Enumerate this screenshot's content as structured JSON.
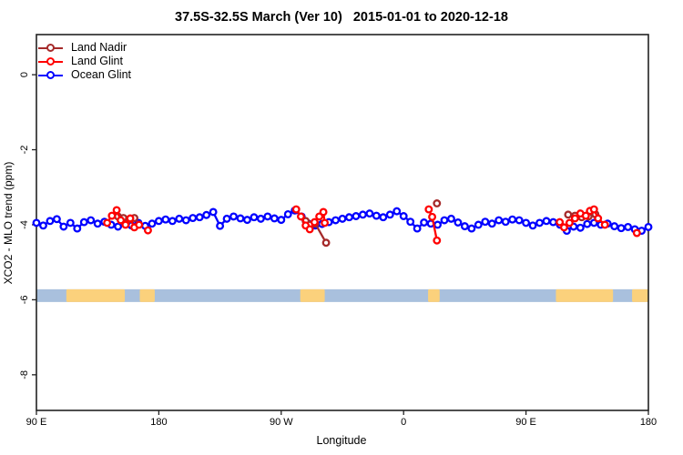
{
  "chart_data": {
    "type": "line",
    "title": "37.5S-32.5S March (Ver 10)   2015-01-01 to 2020-12-18",
    "xlabel": "Longitude",
    "ylabel": "XCO2 - MLO trend (ppm)",
    "x_axis_note": "longitude shown wrapping 450 degrees: 90E -> 180 -> 90W -> 0 -> 90E -> 180",
    "xlim_deg": [
      90,
      540
    ],
    "ylim": [
      -8.95,
      1.07
    ],
    "grid": false,
    "legend_position": "top-left",
    "axis_color": "#222222",
    "x_ticks": [
      {
        "deg": 90,
        "label": "90 E"
      },
      {
        "deg": 180,
        "label": "180"
      },
      {
        "deg": 270,
        "label": "90 W"
      },
      {
        "deg": 360,
        "label": "0"
      },
      {
        "deg": 450,
        "label": "90 E"
      },
      {
        "deg": 540,
        "label": "180"
      }
    ],
    "y_ticks": [
      {
        "v": 0,
        "label": "0"
      },
      {
        "v": -2,
        "label": "-2"
      },
      {
        "v": -4,
        "label": "-4"
      },
      {
        "v": -6,
        "label": "-6"
      },
      {
        "v": -8,
        "label": "-8"
      }
    ],
    "legend": [
      {
        "id": "land-nadir",
        "label": "Land Nadir",
        "color": "#a52a2a"
      },
      {
        "id": "land-glint",
        "label": "Land Glint",
        "color": "#ff0000"
      },
      {
        "id": "ocean-glint",
        "label": "Ocean Glint",
        "color": "#0000ff"
      }
    ],
    "series": [
      {
        "name": "Ocean Glint",
        "color": "#0000ff",
        "segments": [
          [
            [
              90,
              -3.95
            ],
            [
              95,
              -4.02
            ],
            [
              100,
              -3.9
            ],
            [
              105,
              -3.85
            ],
            [
              110,
              -4.05
            ],
            [
              115,
              -3.95
            ],
            [
              120,
              -4.1
            ],
            [
              125,
              -3.93
            ],
            [
              130,
              -3.88
            ],
            [
              135,
              -3.97
            ],
            [
              140,
              -3.92
            ],
            [
              145,
              -4.0
            ],
            [
              150,
              -4.05
            ],
            [
              155,
              -3.97
            ],
            [
              160,
              -4.02
            ],
            [
              165,
              -3.95
            ],
            [
              170,
              -4.03
            ],
            [
              175,
              -3.97
            ],
            [
              180,
              -3.9
            ],
            [
              185,
              -3.86
            ],
            [
              190,
              -3.9
            ],
            [
              195,
              -3.84
            ],
            [
              200,
              -3.88
            ],
            [
              205,
              -3.82
            ],
            [
              210,
              -3.8
            ],
            [
              215,
              -3.74
            ],
            [
              220,
              -3.66
            ],
            [
              225,
              -4.03
            ],
            [
              230,
              -3.84
            ],
            [
              235,
              -3.78
            ],
            [
              240,
              -3.83
            ],
            [
              245,
              -3.87
            ],
            [
              250,
              -3.8
            ],
            [
              255,
              -3.84
            ],
            [
              260,
              -3.78
            ],
            [
              265,
              -3.83
            ],
            [
              270,
              -3.87
            ],
            [
              275,
              -3.72
            ],
            [
              280,
              -3.62
            ],
            [
              285,
              -3.78
            ],
            [
              290,
              -3.97
            ],
            [
              295,
              -4.02
            ],
            [
              300,
              -3.98
            ],
            [
              305,
              -3.93
            ],
            [
              310,
              -3.88
            ],
            [
              315,
              -3.84
            ],
            [
              320,
              -3.8
            ],
            [
              325,
              -3.77
            ],
            [
              330,
              -3.73
            ],
            [
              335,
              -3.7
            ],
            [
              340,
              -3.76
            ],
            [
              345,
              -3.8
            ],
            [
              350,
              -3.73
            ],
            [
              355,
              -3.64
            ],
            [
              360,
              -3.77
            ],
            [
              365,
              -3.92
            ],
            [
              370,
              -4.1
            ],
            [
              375,
              -3.94
            ],
            [
              380,
              -3.97
            ],
            [
              385,
              -4.0
            ],
            [
              390,
              -3.88
            ],
            [
              395,
              -3.84
            ],
            [
              400,
              -3.94
            ],
            [
              405,
              -4.04
            ],
            [
              410,
              -4.1
            ],
            [
              415,
              -4.0
            ],
            [
              420,
              -3.92
            ],
            [
              425,
              -3.97
            ],
            [
              430,
              -3.88
            ],
            [
              435,
              -3.92
            ],
            [
              440,
              -3.86
            ],
            [
              445,
              -3.88
            ],
            [
              450,
              -3.95
            ],
            [
              455,
              -4.02
            ],
            [
              460,
              -3.95
            ],
            [
              465,
              -3.9
            ],
            [
              470,
              -3.93
            ],
            [
              475,
              -4.0
            ],
            [
              480,
              -4.16
            ],
            [
              485,
              -4.05
            ],
            [
              490,
              -4.08
            ],
            [
              495,
              -3.98
            ],
            [
              500,
              -3.95
            ],
            [
              505,
              -4.0
            ],
            [
              510,
              -3.97
            ],
            [
              515,
              -4.04
            ],
            [
              520,
              -4.09
            ],
            [
              525,
              -4.06
            ],
            [
              530,
              -4.12
            ],
            [
              535,
              -4.16
            ],
            [
              540,
              -4.06
            ]
          ]
        ]
      },
      {
        "name": "Land Nadir",
        "color": "#a52a2a",
        "segments": [
          [
            [
              150,
              -3.78
            ],
            [
              154,
              -3.82
            ],
            [
              158,
              -3.86
            ],
            [
              162,
              -3.82
            ]
          ],
          [
            [
              288,
              -3.9
            ],
            [
              291,
              -4.0
            ],
            [
              295,
              -3.97
            ],
            [
              303,
              -4.48
            ]
          ],
          [
            [
              384.5,
              -3.43
            ]
          ],
          [
            [
              481,
              -3.73
            ],
            [
              486,
              -3.76
            ],
            [
              491,
              -3.8
            ],
            [
              496,
              -3.78
            ],
            [
              501,
              -3.72
            ]
          ]
        ]
      },
      {
        "name": "Land Glint",
        "color": "#ff0000",
        "segments": [
          [
            [
              142,
              -3.95
            ],
            [
              145.5,
              -3.76
            ],
            [
              149,
              -3.61
            ],
            [
              152,
              -3.88
            ],
            [
              155.5,
              -4.0
            ],
            [
              159,
              -3.83
            ],
            [
              162,
              -4.07
            ],
            [
              165.5,
              -4.0
            ]
          ],
          [
            [
              172,
              -4.15
            ]
          ],
          [
            [
              281,
              -3.59
            ],
            [
              284.5,
              -3.78
            ],
            [
              288,
              -4.02
            ],
            [
              291,
              -4.12
            ],
            [
              294.5,
              -3.93
            ],
            [
              298,
              -3.78
            ],
            [
              301,
              -3.66
            ],
            [
              302,
              -3.95
            ]
          ],
          [
            [
              378.5,
              -3.59
            ],
            [
              381,
              -3.79
            ],
            [
              384.5,
              -4.42
            ]
          ],
          [
            [
              474.8,
              -3.93
            ],
            [
              478,
              -4.07
            ],
            [
              482,
              -3.95
            ],
            [
              486,
              -3.83
            ],
            [
              490,
              -3.7
            ],
            [
              494,
              -3.76
            ],
            [
              497,
              -3.63
            ],
            [
              500,
              -3.59
            ],
            [
              503,
              -3.83
            ],
            [
              508,
              -4.0
            ]
          ],
          [
            [
              531.5,
              -4.22
            ]
          ]
        ]
      }
    ],
    "map_strip": {
      "description": "land/ocean map band for latitude 37.5S-32.5S",
      "ocean_color": "#a9c0dd",
      "land_color": "#fbd17c",
      "band_ppm": [
        -6.06,
        -5.72
      ],
      "land_patches_deg": [
        [
          112,
          155
        ],
        [
          166,
          177
        ],
        [
          284,
          302
        ],
        [
          378,
          386.5
        ],
        [
          472,
          514
        ],
        [
          528,
          540
        ]
      ]
    }
  }
}
